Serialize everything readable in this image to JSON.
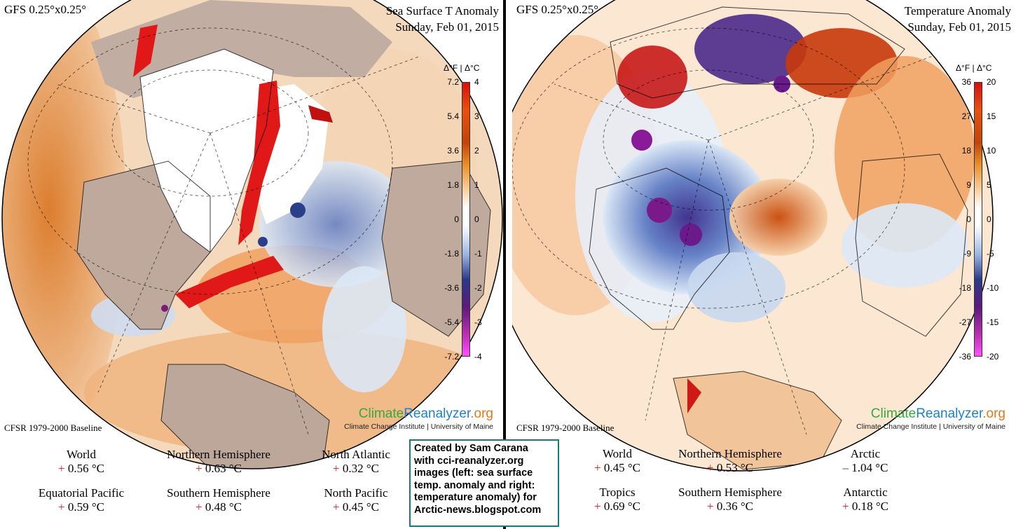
{
  "left_panel": {
    "model": "GFS 0.25°x0.25°",
    "title_line1": "Sea Surface T Anomaly",
    "title_line2": "Sunday, Feb 01, 2015",
    "colorbar_header_f": "Δ°F",
    "colorbar_header_c": "Δ°C",
    "colorbar_f_ticks": [
      "7.2",
      "5.4",
      "3.6",
      "1.8",
      "0",
      "-1.8",
      "-3.6",
      "-5.4",
      "-7.2"
    ],
    "colorbar_c_ticks": [
      "4",
      "3",
      "2",
      "1",
      "0",
      "-1",
      "-2",
      "-3",
      "-4"
    ],
    "baseline": "CFSR 1979-2000 Baseline",
    "brand_part1": "Climate",
    "brand_part2": "Reanalyzer",
    "brand_part3": ".org",
    "institution": "Climate Change Institute | University of Maine",
    "stats": [
      {
        "label": "World",
        "sign": "+",
        "value": "0.56 °C"
      },
      {
        "label": "Northern Hemisphere",
        "sign": "+",
        "value": "0.63 °C"
      },
      {
        "label": "North Atlantic",
        "sign": "+",
        "value": "0.32 °C"
      },
      {
        "label": "Equatorial Pacific",
        "sign": "+",
        "value": "0.59 °C"
      },
      {
        "label": "Southern Hemisphere",
        "sign": "+",
        "value": "0.48 °C"
      },
      {
        "label": "North Pacific",
        "sign": "+",
        "value": "0.45 °C"
      }
    ]
  },
  "right_panel": {
    "model": "GFS 0.25°x0.25°",
    "title_line1": "Temperature Anomaly",
    "title_line2": "Sunday, Feb 01, 2015",
    "colorbar_header_f": "Δ°F",
    "colorbar_header_c": "Δ°C",
    "colorbar_f_ticks": [
      "36",
      "27",
      "18",
      "9",
      "0",
      "-9",
      "-18",
      "-27",
      "-36"
    ],
    "colorbar_c_ticks": [
      "20",
      "15",
      "10",
      "5",
      "0",
      "-5",
      "-10",
      "-15",
      "-20"
    ],
    "baseline": "CFSR 1979-2000 Baseline",
    "brand_part1": "Climate",
    "brand_part2": "Reanalyzer",
    "brand_part3": ".org",
    "institution": "Climate Change Institute | University of Maine",
    "stats": [
      {
        "label": "World",
        "sign": "+",
        "value": "0.45 °C"
      },
      {
        "label": "Northern Hemisphere",
        "sign": "+",
        "value": "0.53 °C"
      },
      {
        "label": "Arctic",
        "sign": "–",
        "value": "1.04 °C"
      },
      {
        "label": "Tropics",
        "sign": "+",
        "value": "0.69 °C"
      },
      {
        "label": "Southern Hemisphere",
        "sign": "+",
        "value": "0.36 °C"
      },
      {
        "label": "Antarctic",
        "sign": "+",
        "value": "0.18 °C"
      }
    ]
  },
  "credit_lines": [
    "Created by Sam Carana",
    "with cci-reanalyzer.org",
    "images (left: sea surface",
    "temp. anomaly and right:",
    "temperature anomaly) for",
    "Arctic-news.blogspot.com"
  ],
  "colors": {
    "warm_strong": "#d81818",
    "warm_mid": "#e07a2a",
    "warm_light": "#f6c89a",
    "neutral": "#ffffff",
    "cool_light": "#cfe0f4",
    "cool_mid": "#5a78c0",
    "cool_strong": "#3a1a7a",
    "extreme_cold": "#ff40ff",
    "land": "#b8a49a",
    "credit_border": "#1a7a7a"
  }
}
